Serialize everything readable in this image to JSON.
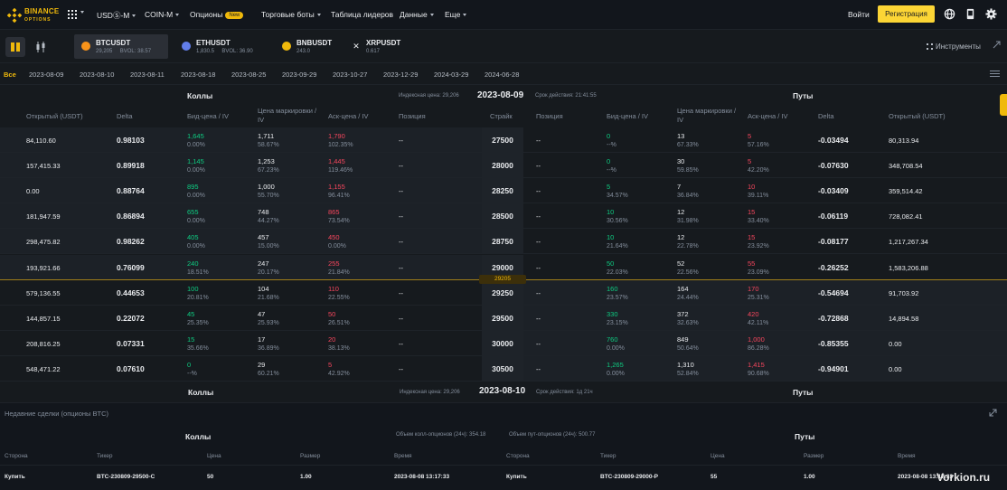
{
  "nav": {
    "logo_main": "BINANCE",
    "logo_sub": "OPTIONS",
    "items": [
      {
        "label": "USDⓈ-M",
        "caret": true
      },
      {
        "label": "COIN-M",
        "caret": true
      },
      {
        "label": "Опционы",
        "badge": "New"
      },
      {
        "label": "Торговые боты",
        "caret": true
      },
      {
        "label": "Таблица лидеров",
        "caret": false
      },
      {
        "label": "Данные",
        "caret": true
      },
      {
        "label": "Еще",
        "caret": true
      }
    ],
    "login": "Войти",
    "register": "Регистрация"
  },
  "symbols": [
    {
      "name": "BTCUSDT",
      "price": "29,205",
      "bvol": "BVOL: 38.57",
      "color": "#f7931a",
      "active": true
    },
    {
      "name": "ETHUSDT",
      "price": "1,830.5",
      "bvol": "BVOL: 36.90",
      "color": "#627eea",
      "active": false
    },
    {
      "name": "BNBUSDT",
      "price": "243.0",
      "bvol": "",
      "color": "#f0b90b",
      "active": false
    },
    {
      "name": "XRPUSDT",
      "price": "0.617",
      "bvol": "",
      "color": "#eaecef",
      "active": false
    }
  ],
  "instruments_label": "Инструменты",
  "dates": [
    "Все",
    "2023-08-09",
    "2023-08-10",
    "2023-08-11",
    "2023-08-18",
    "2023-08-25",
    "2023-09-29",
    "2023-10-27",
    "2023-12-29",
    "2024-03-29",
    "2024-06-28"
  ],
  "chain": {
    "calls_label": "Коллы",
    "puts_label": "Путы",
    "index_label": "Индексная цена: 29,206",
    "expiry": "2023-08-09",
    "expiry_time": "Срок действия: 21:41:55",
    "headers_call": [
      "Открытый (USDT)",
      "Delta",
      "Бид-цена / IV",
      "Цена маркировки / IV",
      "Аск-цена / IV",
      "Позиция"
    ],
    "header_strike": "Страйк",
    "headers_put": [
      "Позиция",
      "Бид-цена / IV",
      "Цена маркировки / IV",
      "Аск-цена / IV",
      "Delta",
      "Открытый (USDT)"
    ],
    "current_price_tag": "29205",
    "rows": [
      {
        "oi_c": "84,110.60",
        "delta_c": "0.98103",
        "bid_c": "1,645",
        "bid_iv_c": "0.00%",
        "mark_c": "1,711",
        "mark_iv_c": "58.67%",
        "ask_c": "1,790",
        "ask_iv_c": "102.35%",
        "pos_c": "--",
        "strike": "27500",
        "pos_p": "--",
        "bid_p": "0",
        "bid_iv_p": "--%",
        "mark_p": "13",
        "mark_iv_p": "67.33%",
        "ask_p": "5",
        "ask_iv_p": "57.16%",
        "delta_p": "-0.03494",
        "oi_p": "80,313.94"
      },
      {
        "oi_c": "157,415.33",
        "delta_c": "0.89918",
        "bid_c": "1,145",
        "bid_iv_c": "0.00%",
        "mark_c": "1,253",
        "mark_iv_c": "67.23%",
        "ask_c": "1,445",
        "ask_iv_c": "119.46%",
        "pos_c": "--",
        "strike": "28000",
        "pos_p": "--",
        "bid_p": "0",
        "bid_iv_p": "--%",
        "mark_p": "30",
        "mark_iv_p": "59.85%",
        "ask_p": "5",
        "ask_iv_p": "42.20%",
        "delta_p": "-0.07630",
        "oi_p": "348,708.54"
      },
      {
        "oi_c": "0.00",
        "delta_c": "0.88764",
        "bid_c": "895",
        "bid_iv_c": "0.00%",
        "mark_c": "1,000",
        "mark_iv_c": "55.70%",
        "ask_c": "1,155",
        "ask_iv_c": "96.41%",
        "pos_c": "--",
        "strike": "28250",
        "pos_p": "--",
        "bid_p": "5",
        "bid_iv_p": "34.57%",
        "mark_p": "7",
        "mark_iv_p": "36.84%",
        "ask_p": "10",
        "ask_iv_p": "39.11%",
        "delta_p": "-0.03409",
        "oi_p": "359,514.42"
      },
      {
        "oi_c": "181,947.59",
        "delta_c": "0.86894",
        "bid_c": "655",
        "bid_iv_c": "0.00%",
        "mark_c": "748",
        "mark_iv_c": "44.27%",
        "ask_c": "865",
        "ask_iv_c": "73.54%",
        "pos_c": "--",
        "strike": "28500",
        "pos_p": "--",
        "bid_p": "10",
        "bid_iv_p": "30.56%",
        "mark_p": "12",
        "mark_iv_p": "31.98%",
        "ask_p": "15",
        "ask_iv_p": "33.40%",
        "delta_p": "-0.06119",
        "oi_p": "728,082.41"
      },
      {
        "oi_c": "298,475.82",
        "delta_c": "0.98262",
        "bid_c": "405",
        "bid_iv_c": "0.00%",
        "mark_c": "457",
        "mark_iv_c": "15.00%",
        "ask_c": "450",
        "ask_iv_c": "0.00%",
        "pos_c": "--",
        "strike": "28750",
        "pos_p": "--",
        "bid_p": "10",
        "bid_iv_p": "21.64%",
        "mark_p": "12",
        "mark_iv_p": "22.78%",
        "ask_p": "15",
        "ask_iv_p": "23.92%",
        "delta_p": "-0.08177",
        "oi_p": "1,217,267.34"
      },
      {
        "oi_c": "193,921.66",
        "delta_c": "0.76099",
        "bid_c": "240",
        "bid_iv_c": "18.51%",
        "mark_c": "247",
        "mark_iv_c": "20.17%",
        "ask_c": "255",
        "ask_iv_c": "21.84%",
        "pos_c": "--",
        "strike": "29000",
        "pos_p": "--",
        "bid_p": "50",
        "bid_iv_p": "22.03%",
        "mark_p": "52",
        "mark_iv_p": "22.56%",
        "ask_p": "55",
        "ask_iv_p": "23.09%",
        "delta_p": "-0.26252",
        "oi_p": "1,583,206.88"
      },
      {
        "oi_c": "579,136.55",
        "delta_c": "0.44653",
        "bid_c": "100",
        "bid_iv_c": "20.81%",
        "mark_c": "104",
        "mark_iv_c": "21.68%",
        "ask_c": "110",
        "ask_iv_c": "22.55%",
        "pos_c": "--",
        "strike": "29250",
        "pos_p": "--",
        "bid_p": "160",
        "bid_iv_p": "23.57%",
        "mark_p": "164",
        "mark_iv_p": "24.44%",
        "ask_p": "170",
        "ask_iv_p": "25.31%",
        "delta_p": "-0.54694",
        "oi_p": "91,703.92"
      },
      {
        "oi_c": "144,857.15",
        "delta_c": "0.22072",
        "bid_c": "45",
        "bid_iv_c": "25.35%",
        "mark_c": "47",
        "mark_iv_c": "25.93%",
        "ask_c": "50",
        "ask_iv_c": "26.51%",
        "pos_c": "--",
        "strike": "29500",
        "pos_p": "--",
        "bid_p": "330",
        "bid_iv_p": "23.15%",
        "mark_p": "372",
        "mark_iv_p": "32.63%",
        "ask_p": "420",
        "ask_iv_p": "42.11%",
        "delta_p": "-0.72868",
        "oi_p": "14,894.58"
      },
      {
        "oi_c": "208,816.25",
        "delta_c": "0.07331",
        "bid_c": "15",
        "bid_iv_c": "35.66%",
        "mark_c": "17",
        "mark_iv_c": "36.89%",
        "ask_c": "20",
        "ask_iv_c": "38.13%",
        "pos_c": "--",
        "strike": "30000",
        "pos_p": "--",
        "bid_p": "760",
        "bid_iv_p": "0.00%",
        "mark_p": "849",
        "mark_iv_p": "50.64%",
        "ask_p": "1,000",
        "ask_iv_p": "86.28%",
        "delta_p": "-0.85355",
        "oi_p": "0.00"
      },
      {
        "oi_c": "548,471.22",
        "delta_c": "0.07610",
        "bid_c": "0",
        "bid_iv_c": "--%",
        "mark_c": "29",
        "mark_iv_c": "60.21%",
        "ask_c": "5",
        "ask_iv_c": "42.92%",
        "pos_c": "--",
        "strike": "30500",
        "pos_p": "--",
        "bid_p": "1,265",
        "bid_iv_p": "0.00%",
        "mark_p": "1,310",
        "mark_iv_p": "52.84%",
        "ask_p": "1,415",
        "ask_iv_p": "90.68%",
        "delta_p": "-0.94901",
        "oi_p": "0.00"
      }
    ]
  },
  "chain2": {
    "calls_label": "Коллы",
    "puts_label": "Путы",
    "index_label": "Индексная цена: 29,206",
    "expiry": "2023-08-10",
    "expiry_time": "Срок действия: 1д 21ч"
  },
  "trades": {
    "title": "Недавние сделки (опционы BTC)",
    "calls_label": "Коллы",
    "puts_label": "Путы",
    "call_volume": "Объем колл-опционов (24ч): 354.18",
    "put_volume": "Объем пут-опционов (24ч): 500.77",
    "headers": [
      "Сторона",
      "Тикер",
      "Цена",
      "Размер",
      "Время"
    ],
    "call_row": {
      "side": "Купить",
      "ticker": "BTC-230809-29500-C",
      "price": "50",
      "size": "1.00",
      "time": "2023-08-08 13:17:33"
    },
    "put_row": {
      "side": "Купить",
      "ticker": "BTC-230809-29000-P",
      "price": "55",
      "size": "1.00",
      "time": "2023-08-08 13:17:33"
    }
  },
  "watermark": "Vorkion.ru",
  "colors": {
    "accent": "#f0b90b",
    "up": "#0ecb81",
    "down": "#f6465d",
    "muted": "#848e9c"
  }
}
